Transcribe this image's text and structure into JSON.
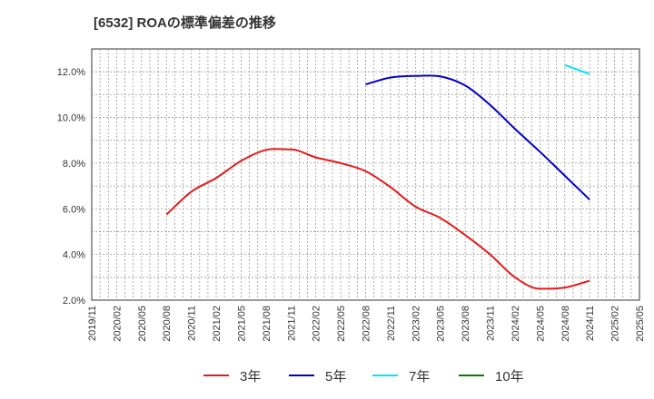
{
  "chart_data": {
    "type": "line",
    "title": "[6532]  ROAの標準偏差の推移",
    "xlabel": "",
    "ylabel": "",
    "ylim": [
      2.0,
      13.0
    ],
    "yticks": [
      2.0,
      4.0,
      6.0,
      8.0,
      10.0,
      12.0
    ],
    "ytick_labels": [
      "2.0%",
      "4.0%",
      "6.0%",
      "8.0%",
      "10.0%",
      "12.0%"
    ],
    "grid": true,
    "legend_position": "bottom",
    "x_categories": [
      "2019/11",
      "2020/02",
      "2020/05",
      "2020/08",
      "2020/11",
      "2021/02",
      "2021/05",
      "2021/08",
      "2021/11",
      "2022/02",
      "2022/05",
      "2022/08",
      "2022/11",
      "2023/02",
      "2023/05",
      "2023/08",
      "2023/11",
      "2024/02",
      "2024/05",
      "2024/08",
      "2024/11",
      "2025/02",
      "2025/05"
    ],
    "series": [
      {
        "name": "3年",
        "color": "#e41a1c",
        "x": [
          "2020/08",
          "2020/11",
          "2021/02",
          "2021/05",
          "2021/08",
          "2021/11",
          "2022/02",
          "2022/05",
          "2022/08",
          "2022/11",
          "2023/02",
          "2023/05",
          "2023/08",
          "2023/11",
          "2024/02",
          "2024/05",
          "2024/08",
          "2024/11"
        ],
        "values": [
          5.75,
          6.75,
          7.35,
          8.1,
          8.58,
          8.6,
          8.25,
          8.0,
          7.65,
          6.95,
          6.1,
          5.6,
          4.85,
          4.0,
          3.0,
          2.5,
          2.55,
          2.85
        ]
      },
      {
        "name": "5年",
        "color": "#0000cc",
        "x": [
          "2022/08",
          "2022/11",
          "2023/02",
          "2023/05",
          "2023/08",
          "2023/11",
          "2024/02",
          "2024/05",
          "2024/08",
          "2024/11"
        ],
        "values": [
          11.45,
          11.75,
          11.82,
          11.8,
          11.4,
          10.55,
          9.5,
          8.5,
          7.45,
          6.4
        ]
      },
      {
        "name": "7年",
        "color": "#00e5ff",
        "x": [
          "2024/08",
          "2024/11"
        ],
        "values": [
          12.3,
          11.9
        ]
      },
      {
        "name": "10年",
        "color": "#008000",
        "x": [],
        "values": []
      }
    ]
  }
}
